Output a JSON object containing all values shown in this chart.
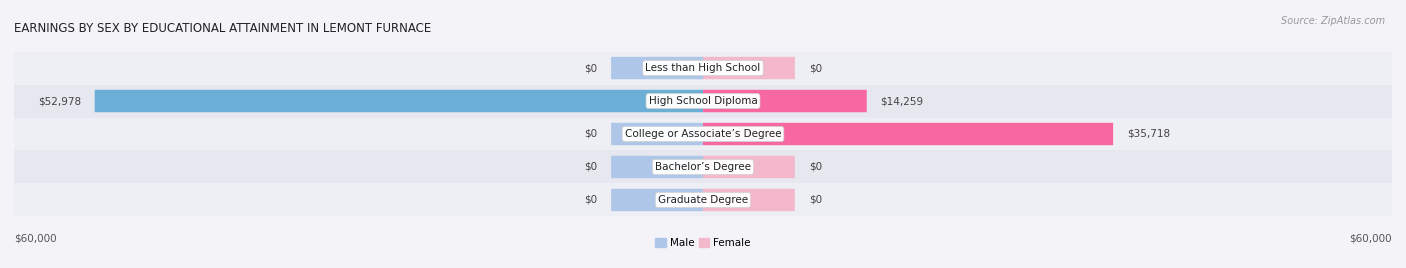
{
  "title": "EARNINGS BY SEX BY EDUCATIONAL ATTAINMENT IN LEMONT FURNACE",
  "source": "Source: ZipAtlas.com",
  "categories": [
    "Less than High School",
    "High School Diploma",
    "College or Associate’s Degree",
    "Bachelor’s Degree",
    "Graduate Degree"
  ],
  "male_values": [
    0,
    52978,
    0,
    0,
    0
  ],
  "female_values": [
    0,
    14259,
    35718,
    0,
    0
  ],
  "male_color_light": "#aec6e8",
  "male_color_full": "#6baed6",
  "female_color_light": "#f4b8cc",
  "female_color_full": "#f768a1",
  "row_bg_even": "#eeeff4",
  "row_bg_odd": "#e6e7ef",
  "fig_bg": "#f4f4f8",
  "xlim": 60000,
  "stub_value": 8000,
  "legend_male": "Male",
  "legend_female": "Female",
  "title_fontsize": 8.5,
  "label_fontsize": 7.5,
  "source_fontsize": 7.0,
  "value_fontsize": 7.5
}
